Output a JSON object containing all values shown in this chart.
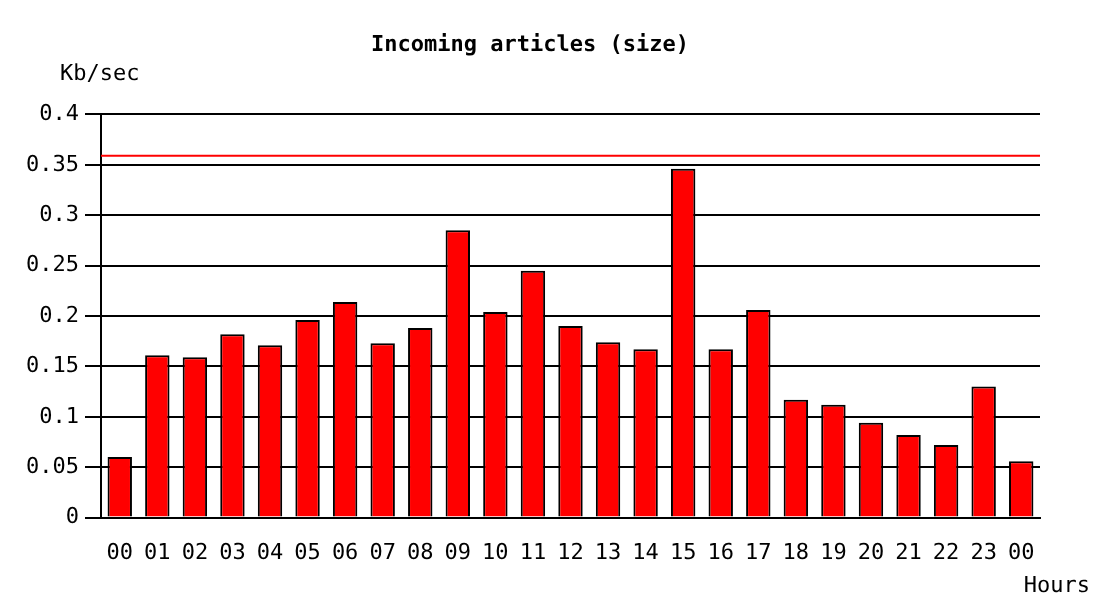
{
  "chart_data": {
    "type": "bar",
    "title": "Incoming articles (size)",
    "xlabel": "Hours",
    "ylabel": "Kb/sec",
    "categories": [
      "00",
      "01",
      "02",
      "03",
      "04",
      "05",
      "06",
      "07",
      "08",
      "09",
      "10",
      "11",
      "12",
      "13",
      "14",
      "15",
      "16",
      "17",
      "18",
      "19",
      "20",
      "21",
      "22",
      "23",
      "00"
    ],
    "series": [
      {
        "color": "#ff0000",
        "values": [
          0.06,
          0.161,
          0.159,
          0.182,
          0.171,
          0.196,
          0.214,
          0.173,
          0.188,
          0.285,
          0.204,
          0.245,
          0.19,
          0.174,
          0.167,
          0.346,
          0.167,
          0.206,
          0.117,
          0.112,
          0.094,
          0.082,
          0.072,
          0.13,
          0.056
        ]
      }
    ],
    "ylim": [
      0,
      0.4
    ],
    "yticks": [
      0,
      0.05,
      0.1,
      0.15,
      0.2,
      0.25,
      0.3,
      0.35,
      0.4
    ],
    "grid": "y",
    "ref_lines": [
      {
        "axis": "y",
        "value": 0.359,
        "color": "#ff0000"
      }
    ]
  }
}
